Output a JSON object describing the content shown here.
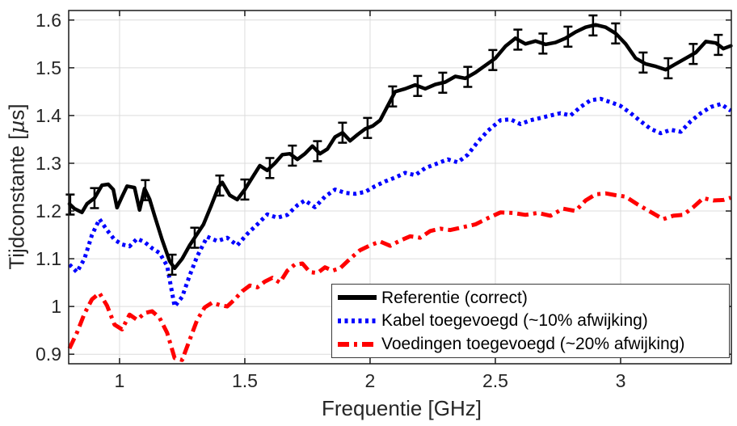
{
  "figure": {
    "background": "#ffffff",
    "axis_color": "#1a1a1a",
    "grid_color": "#dcdcdc",
    "tick_label_color": "#262626"
  },
  "chart_data": {
    "type": "line",
    "title": "",
    "xlabel": "Frequentie [GHz]",
    "ylabel": "Tijdconstante [µs]",
    "xlim": [
      0.797,
      3.442
    ],
    "ylim": [
      0.88,
      1.62
    ],
    "x_ticks": [
      1,
      1.5,
      2,
      2.5,
      3
    ],
    "x_tick_labels": [
      "1",
      "1.5",
      "2",
      "2.5",
      "3"
    ],
    "y_ticks": [
      0.9,
      1.0,
      1.1,
      1.2,
      1.3,
      1.4,
      1.5,
      1.6
    ],
    "y_tick_labels": [
      "0.9",
      "1",
      "1.1",
      "1.2",
      "1.3",
      "1.4",
      "1.5",
      "1.6"
    ],
    "grid": true,
    "legend_position": "bottom-right",
    "series": [
      {
        "name": "Referentie (correct)",
        "color": "#000000",
        "style": "solid",
        "x": [
          0.8,
          0.82,
          0.85,
          0.87,
          0.9,
          0.93,
          0.955,
          0.975,
          0.99,
          1.01,
          1.03,
          1.06,
          1.08,
          1.1,
          1.12,
          1.14,
          1.17,
          1.2,
          1.22,
          1.25,
          1.28,
          1.31,
          1.335,
          1.365,
          1.395,
          1.41,
          1.44,
          1.47,
          1.5,
          1.53,
          1.56,
          1.59,
          1.62,
          1.65,
          1.68,
          1.71,
          1.74,
          1.77,
          1.8,
          1.83,
          1.86,
          1.89,
          1.92,
          1.95,
          1.98,
          2.01,
          2.04,
          2.07,
          2.1,
          2.14,
          2.18,
          2.22,
          2.26,
          2.3,
          2.34,
          2.38,
          2.42,
          2.46,
          2.5,
          2.54,
          2.58,
          2.62,
          2.66,
          2.7,
          2.74,
          2.78,
          2.82,
          2.86,
          2.9,
          2.94,
          2.98,
          3.02,
          3.06,
          3.1,
          3.14,
          3.18,
          3.22,
          3.26,
          3.3,
          3.34,
          3.38,
          3.41,
          3.44
        ],
        "y": [
          1.215,
          1.205,
          1.197,
          1.215,
          1.227,
          1.254,
          1.256,
          1.245,
          1.207,
          1.23,
          1.252,
          1.249,
          1.202,
          1.247,
          1.225,
          1.19,
          1.14,
          1.095,
          1.08,
          1.1,
          1.128,
          1.152,
          1.172,
          1.21,
          1.25,
          1.26,
          1.233,
          1.224,
          1.245,
          1.27,
          1.295,
          1.285,
          1.3,
          1.318,
          1.32,
          1.308,
          1.32,
          1.336,
          1.32,
          1.33,
          1.355,
          1.364,
          1.347,
          1.36,
          1.372,
          1.378,
          1.39,
          1.42,
          1.45,
          1.456,
          1.464,
          1.456,
          1.465,
          1.47,
          1.482,
          1.478,
          1.49,
          1.505,
          1.52,
          1.545,
          1.562,
          1.55,
          1.556,
          1.549,
          1.553,
          1.562,
          1.575,
          1.585,
          1.59,
          1.585,
          1.572,
          1.55,
          1.52,
          1.508,
          1.503,
          1.496,
          1.508,
          1.52,
          1.532,
          1.555,
          1.552,
          1.54,
          1.546
        ],
        "error_bars": {
          "x": [
            0.803,
            0.9,
            1.103,
            1.21,
            1.3,
            1.4,
            1.5,
            1.6,
            1.69,
            1.79,
            1.89,
            1.99,
            2.09,
            2.19,
            2.29,
            2.39,
            2.49,
            2.59,
            2.69,
            2.79,
            2.89,
            2.98,
            3.09,
            3.19,
            3.29,
            3.39
          ],
          "half_height": 0.021
        }
      },
      {
        "name": "Kabel toegevoegd (~10% afwijking)",
        "color": "#0000ff",
        "style": "dotted",
        "x": [
          0.8,
          0.83,
          0.86,
          0.89,
          0.92,
          0.95,
          0.98,
          1.01,
          1.04,
          1.07,
          1.1,
          1.13,
          1.16,
          1.19,
          1.22,
          1.25,
          1.28,
          1.31,
          1.35,
          1.39,
          1.43,
          1.47,
          1.51,
          1.55,
          1.59,
          1.63,
          1.67,
          1.71,
          1.74,
          1.78,
          1.82,
          1.86,
          1.9,
          1.94,
          1.98,
          2.02,
          2.06,
          2.1,
          2.14,
          2.18,
          2.22,
          2.26,
          2.31,
          2.35,
          2.39,
          2.43,
          2.47,
          2.52,
          2.56,
          2.6,
          2.64,
          2.68,
          2.72,
          2.76,
          2.8,
          2.84,
          2.88,
          2.92,
          2.96,
          3.0,
          3.04,
          3.08,
          3.12,
          3.16,
          3.2,
          3.24,
          3.28,
          3.32,
          3.36,
          3.4,
          3.44
        ],
        "y": [
          1.088,
          1.072,
          1.1,
          1.15,
          1.183,
          1.16,
          1.14,
          1.13,
          1.126,
          1.142,
          1.135,
          1.122,
          1.112,
          1.085,
          1.0,
          1.02,
          1.065,
          1.105,
          1.146,
          1.137,
          1.144,
          1.128,
          1.152,
          1.172,
          1.193,
          1.186,
          1.192,
          1.212,
          1.222,
          1.208,
          1.23,
          1.245,
          1.238,
          1.236,
          1.24,
          1.252,
          1.262,
          1.27,
          1.28,
          1.275,
          1.29,
          1.298,
          1.308,
          1.302,
          1.318,
          1.345,
          1.368,
          1.39,
          1.392,
          1.382,
          1.39,
          1.395,
          1.4,
          1.405,
          1.4,
          1.418,
          1.432,
          1.435,
          1.428,
          1.42,
          1.405,
          1.388,
          1.372,
          1.363,
          1.37,
          1.366,
          1.388,
          1.405,
          1.418,
          1.424,
          1.41
        ]
      },
      {
        "name": "Voedingen toegevoegd (~20% afwijking)",
        "color": "#ff0000",
        "style": "dashdot",
        "x": [
          0.8,
          0.83,
          0.86,
          0.89,
          0.92,
          0.95,
          0.98,
          1.01,
          1.04,
          1.07,
          1.1,
          1.13,
          1.16,
          1.19,
          1.22,
          1.25,
          1.28,
          1.31,
          1.34,
          1.37,
          1.4,
          1.43,
          1.46,
          1.49,
          1.52,
          1.55,
          1.58,
          1.61,
          1.64,
          1.67,
          1.7,
          1.73,
          1.76,
          1.79,
          1.82,
          1.85,
          1.88,
          1.92,
          1.96,
          2.0,
          2.04,
          2.08,
          2.12,
          2.16,
          2.2,
          2.24,
          2.28,
          2.32,
          2.37,
          2.42,
          2.47,
          2.52,
          2.57,
          2.62,
          2.67,
          2.72,
          2.77,
          2.82,
          2.86,
          2.9,
          2.94,
          2.98,
          3.02,
          3.07,
          3.12,
          3.17,
          3.21,
          3.25,
          3.29,
          3.33,
          3.37,
          3.41,
          3.44
        ],
        "y": [
          0.912,
          0.945,
          0.985,
          1.015,
          1.028,
          1.002,
          0.962,
          0.952,
          0.983,
          0.972,
          0.986,
          0.99,
          0.976,
          0.945,
          0.892,
          0.888,
          0.93,
          0.972,
          0.998,
          1.008,
          1.003,
          1.0,
          1.015,
          1.032,
          1.044,
          1.04,
          1.052,
          1.06,
          1.05,
          1.075,
          1.088,
          1.09,
          1.072,
          1.07,
          1.082,
          1.075,
          1.08,
          1.1,
          1.118,
          1.128,
          1.136,
          1.127,
          1.138,
          1.147,
          1.144,
          1.158,
          1.163,
          1.16,
          1.166,
          1.172,
          1.185,
          1.197,
          1.196,
          1.192,
          1.196,
          1.19,
          1.205,
          1.2,
          1.222,
          1.235,
          1.237,
          1.233,
          1.23,
          1.213,
          1.198,
          1.183,
          1.19,
          1.192,
          1.208,
          1.227,
          1.222,
          1.223,
          1.228
        ]
      }
    ]
  }
}
